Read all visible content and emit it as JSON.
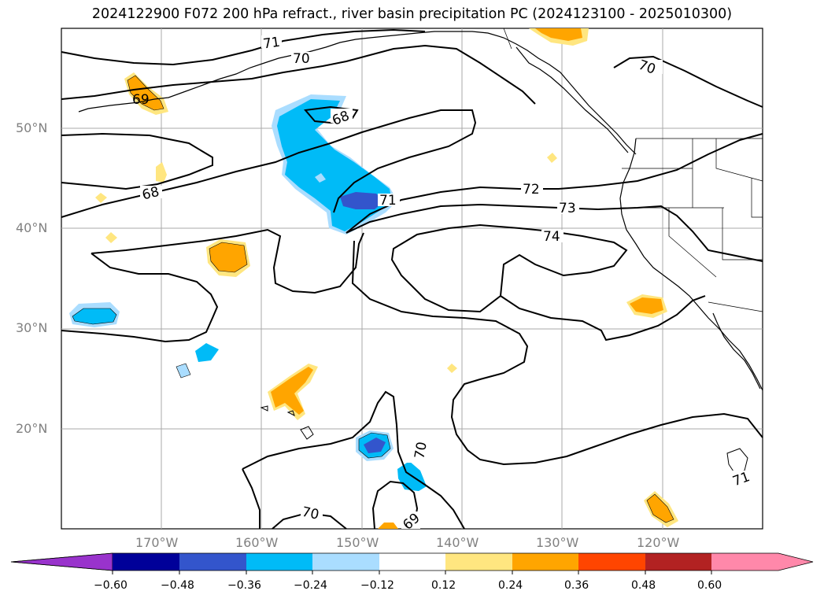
{
  "title": "2024122900 F072 200 hPa refract., river basin precipitation PC (2024123100 - 2025010300)",
  "map": {
    "lat_labels": [
      "50°N",
      "40°N",
      "30°N",
      "20°N"
    ],
    "lon_labels": [
      "170°W",
      "160°W",
      "150°W",
      "140°W",
      "130°W",
      "120°W"
    ],
    "contour_labels": [
      "71",
      "70",
      "70",
      "69",
      "68",
      "68",
      "71",
      "72",
      "73",
      "74",
      "70",
      "70",
      "69",
      "71"
    ]
  },
  "colorbar": {
    "ticks": [
      "−0.60",
      "−0.48",
      "−0.36",
      "−0.24",
      "−0.12",
      "0.12",
      "0.24",
      "0.36",
      "0.48",
      "0.60"
    ],
    "colors": [
      "#9933cc",
      "#000099",
      "#3355cc",
      "#00bbf7",
      "#aaddff",
      "#ffffff",
      "#ffe680",
      "#ffa500",
      "#ff4500",
      "#b22222",
      "#ff88aa",
      "#ff88aa"
    ]
  }
}
